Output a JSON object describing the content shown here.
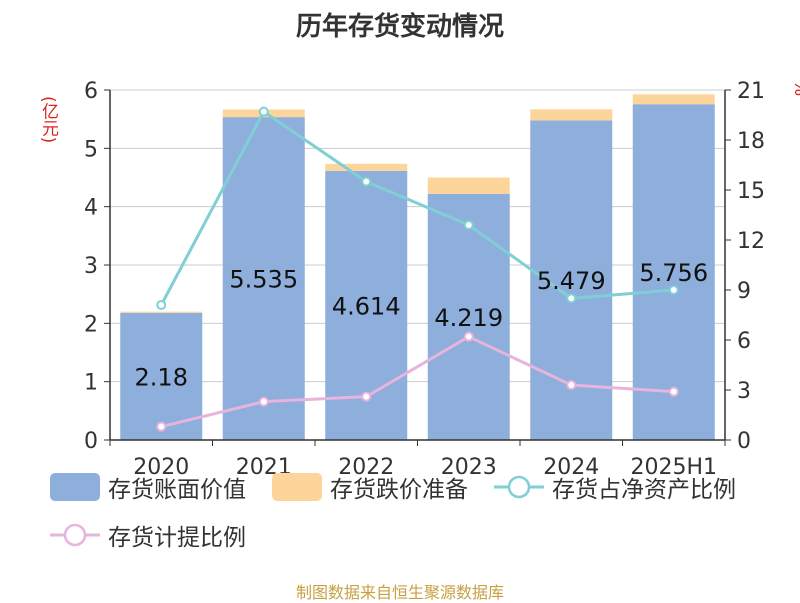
{
  "title": "历年存货变动情况",
  "y_left_unit": "(亿元)",
  "y_right_unit": "%",
  "source": "制图数据来自恒生聚源数据库",
  "legend": {
    "book_value": "存货账面价值",
    "impairment": "存货跌价准备",
    "net_asset_ratio": "存货占净资产比例",
    "provision_ratio": "存货计提比例"
  },
  "colors": {
    "book_value": "#8eaedb",
    "impairment": "#fdd59b",
    "net_asset_ratio": "#7fcfd4",
    "provision_ratio": "#e6b4dc",
    "axis": "#333333",
    "grid": "#cccccc",
    "unit_text": "#d9261c"
  },
  "chart_data": {
    "type": "bar",
    "title": "历年存货变动情况",
    "categories": [
      "2020",
      "2021",
      "2022",
      "2023",
      "2024",
      "2025H1"
    ],
    "left_axis": {
      "unit": "(亿元)",
      "ylim": [
        0,
        6
      ],
      "ticks": [
        0,
        1,
        2,
        3,
        4,
        5,
        6
      ]
    },
    "right_axis": {
      "unit": "%",
      "ylim": [
        0,
        21
      ],
      "ticks": [
        0,
        3,
        6,
        9,
        12,
        15,
        18,
        21
      ]
    },
    "grid": true,
    "legend_position": "bottom",
    "series": [
      {
        "name": "存货账面价值",
        "type": "bar",
        "axis": "left",
        "stack": "inventory",
        "values": [
          2.18,
          5.535,
          4.614,
          4.219,
          5.479,
          5.756
        ],
        "labels": [
          "2.18",
          "5.535",
          "4.614",
          "4.219",
          "5.479",
          "5.756"
        ]
      },
      {
        "name": "存货跌价准备",
        "type": "bar",
        "axis": "left",
        "stack": "inventory",
        "values": [
          0.02,
          0.13,
          0.12,
          0.28,
          0.19,
          0.17
        ]
      },
      {
        "name": "存货占净资产比例",
        "type": "line",
        "axis": "right",
        "values": [
          8.1,
          19.7,
          15.5,
          12.9,
          8.5,
          9.0
        ]
      },
      {
        "name": "存货计提比例",
        "type": "line",
        "axis": "right",
        "values": [
          0.8,
          2.3,
          2.6,
          6.2,
          3.3,
          2.9
        ]
      }
    ]
  }
}
